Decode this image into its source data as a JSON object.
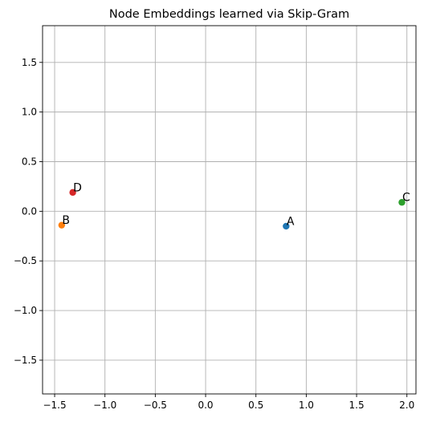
{
  "chart_data": {
    "type": "scatter",
    "title": "Node Embeddings learned via Skip-Gram",
    "xlabel": "",
    "ylabel": "",
    "xlim": [
      -1.62,
      2.09
    ],
    "ylim": [
      -1.84,
      1.87
    ],
    "xticks": [
      -1.5,
      -1.0,
      -0.5,
      0.0,
      0.5,
      1.0,
      1.5,
      2.0
    ],
    "xtick_labels": [
      "−1.5",
      "−1.0",
      "−0.5",
      "0.0",
      "0.5",
      "1.0",
      "1.5",
      "2.0"
    ],
    "yticks": [
      -1.5,
      -1.0,
      -0.5,
      0.0,
      0.5,
      1.0,
      1.5
    ],
    "ytick_labels": [
      "−1.5",
      "−1.0",
      "−0.5",
      "0.0",
      "0.5",
      "1.0",
      "1.5"
    ],
    "grid": true,
    "points": [
      {
        "label": "A",
        "x": 0.8,
        "y": -0.15,
        "color": "#1f77b4"
      },
      {
        "label": "B",
        "x": -1.43,
        "y": -0.14,
        "color": "#ff7f0e"
      },
      {
        "label": "C",
        "x": 1.95,
        "y": 0.09,
        "color": "#2ca02c"
      },
      {
        "label": "D",
        "x": -1.32,
        "y": 0.19,
        "color": "#d62728"
      }
    ]
  }
}
